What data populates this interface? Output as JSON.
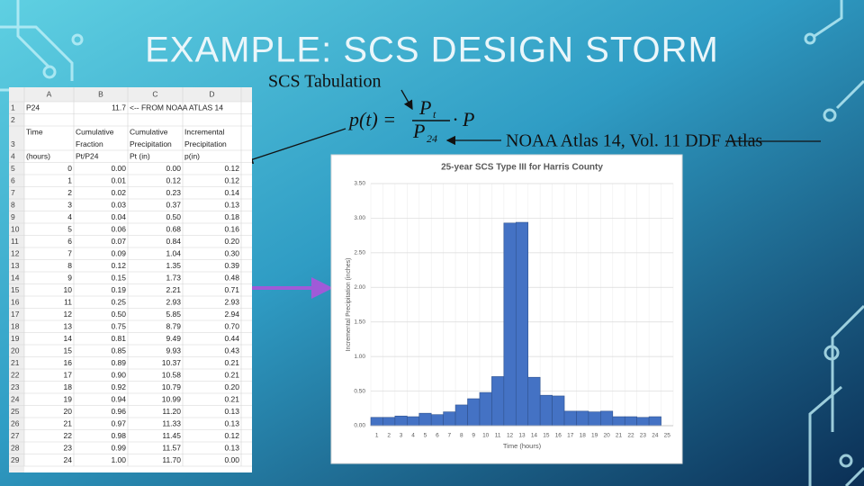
{
  "title": "EXAMPLE: SCS DESIGN STORM",
  "callouts": {
    "tabulation": "SCS Tabulation",
    "source": "NOAA Atlas 14, Vol. 11 DDF Atlas"
  },
  "formula": {
    "lhs": "p(t) =",
    "num": "P",
    "num_sub": "t",
    "den": "P",
    "den_sub": "24",
    "rhs": "· P"
  },
  "table": {
    "columns": [
      "A",
      "B",
      "C",
      "D"
    ],
    "row_numbers": [
      1,
      2,
      3,
      4,
      5,
      6,
      7,
      8,
      9,
      10,
      11,
      12,
      13,
      14,
      15,
      16,
      17,
      18,
      19,
      20,
      21,
      22,
      23,
      24,
      25,
      26,
      27,
      28,
      29
    ],
    "rows": [
      [
        "P24",
        "11.7",
        "<-- FROM NOAA ATLAS 14",
        null
      ],
      [
        null,
        null,
        null,
        null
      ],
      [
        [
          "Time"
        ],
        [
          "Cumulative",
          "Fraction"
        ],
        [
          "Cumulative",
          "Precipitation"
        ],
        [
          "Incremental",
          "Precipitation"
        ]
      ],
      [
        "(hours)",
        "Pt/P24",
        "Pt (in)",
        "p(in)"
      ],
      [
        "0",
        "0.00",
        "0.00",
        "0.12"
      ],
      [
        "1",
        "0.01",
        "0.12",
        "0.12"
      ],
      [
        "2",
        "0.02",
        "0.23",
        "0.14"
      ],
      [
        "3",
        "0.03",
        "0.37",
        "0.13"
      ],
      [
        "4",
        "0.04",
        "0.50",
        "0.18"
      ],
      [
        "5",
        "0.06",
        "0.68",
        "0.16"
      ],
      [
        "6",
        "0.07",
        "0.84",
        "0.20"
      ],
      [
        "7",
        "0.09",
        "1.04",
        "0.30"
      ],
      [
        "8",
        "0.12",
        "1.35",
        "0.39"
      ],
      [
        "9",
        "0.15",
        "1.73",
        "0.48"
      ],
      [
        "10",
        "0.19",
        "2.21",
        "0.71"
      ],
      [
        "11",
        "0.25",
        "2.93",
        "2.93"
      ],
      [
        "12",
        "0.50",
        "5.85",
        "2.94"
      ],
      [
        "13",
        "0.75",
        "8.79",
        "0.70"
      ],
      [
        "14",
        "0.81",
        "9.49",
        "0.44"
      ],
      [
        "15",
        "0.85",
        "9.93",
        "0.43"
      ],
      [
        "16",
        "0.89",
        "10.37",
        "0.21"
      ],
      [
        "17",
        "0.90",
        "10.58",
        "0.21"
      ],
      [
        "18",
        "0.92",
        "10.79",
        "0.20"
      ],
      [
        "19",
        "0.94",
        "10.99",
        "0.21"
      ],
      [
        "20",
        "0.96",
        "11.20",
        "0.13"
      ],
      [
        "21",
        "0.97",
        "11.33",
        "0.13"
      ],
      [
        "22",
        "0.98",
        "11.45",
        "0.12"
      ],
      [
        "23",
        "0.99",
        "11.57",
        "0.13"
      ],
      [
        "24",
        "1.00",
        "11.70",
        "0.00"
      ]
    ]
  },
  "chart_data": {
    "type": "bar",
    "title": "25-year SCS Type III for Harris County",
    "x_label": "Time (hours)",
    "y_label": "Incremental Precipitation (inches)",
    "categories": [
      1,
      2,
      3,
      4,
      5,
      6,
      7,
      8,
      9,
      10,
      11,
      12,
      13,
      14,
      15,
      16,
      17,
      18,
      19,
      20,
      21,
      22,
      23,
      24,
      25
    ],
    "values": [
      0.12,
      0.12,
      0.14,
      0.13,
      0.18,
      0.16,
      0.2,
      0.3,
      0.39,
      0.48,
      0.71,
      2.93,
      2.94,
      0.7,
      0.44,
      0.43,
      0.21,
      0.21,
      0.2,
      0.21,
      0.13,
      0.13,
      0.12,
      0.13,
      0.0
    ],
    "color": "#4472c4",
    "ylim": [
      0,
      3.5
    ],
    "yticks": [
      {
        "value": 0,
        "label": "0.00"
      },
      {
        "value": 0.5,
        "label": "0.50"
      },
      {
        "value": 1,
        "label": "1.00"
      },
      {
        "value": 1.5,
        "label": "1.50"
      },
      {
        "value": 2,
        "label": "2.00"
      },
      {
        "value": 2.5,
        "label": "2.50"
      },
      {
        "value": 3,
        "label": "3.00"
      },
      {
        "value": 3.5,
        "label": "3.50"
      }
    ],
    "grid": true
  }
}
